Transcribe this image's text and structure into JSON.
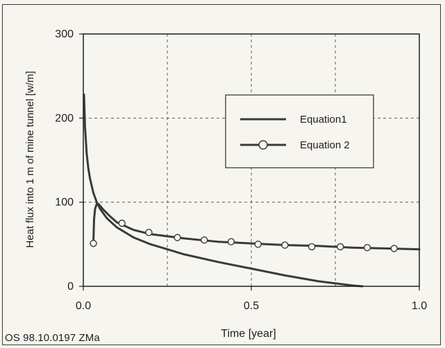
{
  "footer_note": "OS 98.10.0197 ZMa",
  "chart_data": {
    "type": "line",
    "title": "",
    "xlabel": "Time [year]",
    "ylabel": "Heat flux into 1 m of mine tunnel [w/m]",
    "xlim": [
      0,
      1
    ],
    "ylim": [
      0,
      300
    ],
    "x_ticks": [
      0,
      0.5,
      1
    ],
    "x_tick_labels": [
      "0.0",
      "0.5",
      "1.0"
    ],
    "y_ticks": [
      0,
      100,
      200,
      300
    ],
    "y_tick_labels": [
      "0",
      "100",
      "200",
      "300"
    ],
    "grid": true,
    "grid_style": "dashed",
    "grid_x": [
      0.25,
      0.5,
      0.75
    ],
    "grid_y": [
      100,
      200
    ],
    "legend_position": "upper-right",
    "colors": {
      "series": "#3a3a3a",
      "axis": "#1e1e1e",
      "grid": "#5a5a5a",
      "background": "#f7f5ef"
    },
    "series": [
      {
        "name": "Equation1",
        "marker": "none",
        "x": [
          0.002,
          0.005,
          0.01,
          0.015,
          0.02,
          0.03,
          0.04,
          0.05,
          0.07,
          0.1,
          0.15,
          0.2,
          0.25,
          0.3,
          0.4,
          0.5,
          0.6,
          0.7,
          0.8,
          0.83
        ],
        "y": [
          228,
          190,
          158,
          140,
          128,
          111,
          100,
          92,
          81,
          70,
          58,
          50,
          44,
          38,
          29,
          21,
          13,
          6,
          1,
          0
        ]
      },
      {
        "name": "Equation 2",
        "marker": "circle",
        "x": [
          0.03,
          0.032,
          0.035,
          0.04,
          0.045,
          0.06,
          0.08,
          0.1,
          0.15,
          0.2,
          0.3,
          0.4,
          0.5,
          0.6,
          0.7,
          0.8,
          0.9,
          1.0
        ],
        "y": [
          51,
          80,
          92,
          98,
          98,
          91,
          83,
          76,
          67,
          62,
          57,
          53,
          51,
          49,
          48,
          46,
          45,
          44
        ],
        "marker_x": [
          0.03,
          0.115,
          0.195,
          0.28,
          0.36,
          0.44,
          0.52,
          0.6,
          0.68,
          0.765,
          0.845,
          0.925
        ],
        "marker_y": [
          51,
          75,
          64,
          58,
          55,
          53,
          50,
          49,
          47,
          47,
          46,
          45
        ]
      }
    ]
  }
}
